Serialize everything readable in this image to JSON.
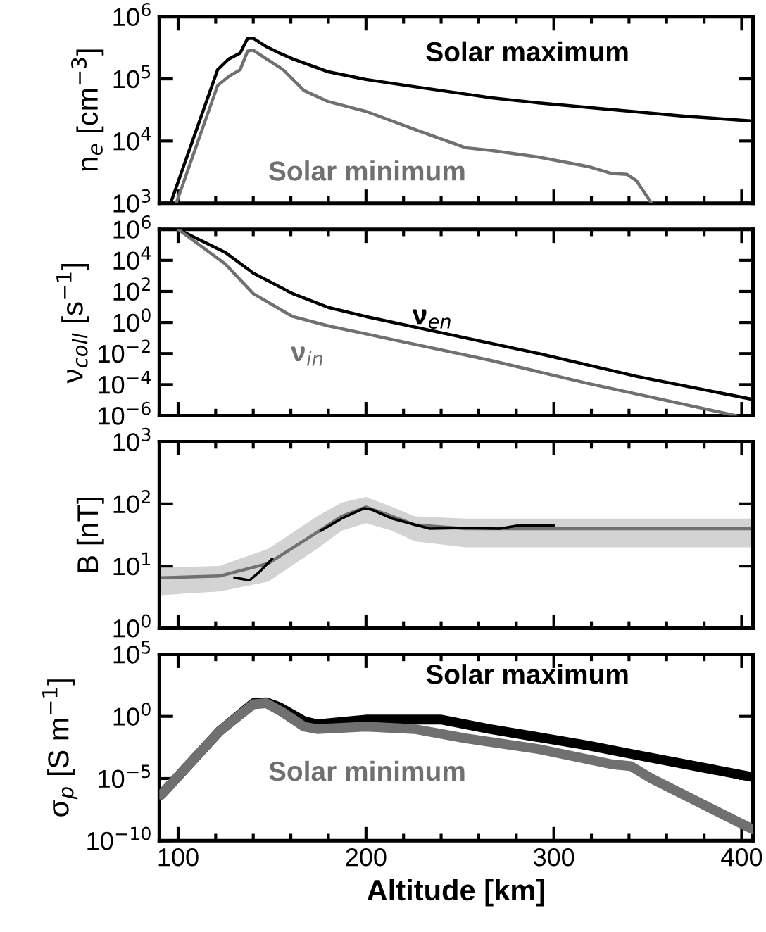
{
  "chart_data": [
    {
      "type": "line",
      "ylabel": "n$_{e}$ [cm$^{−3}$]",
      "log": "y",
      "xlim": [
        90,
        406
      ],
      "ylim": [
        1000,
        1000000
      ],
      "xticks": [
        100,
        {
          "value": 120,
          "label": null
        },
        {
          "value": 140,
          "label": null
        },
        {
          "value": 160,
          "label": null
        },
        {
          "value": 180,
          "label": null
        },
        200,
        {
          "value": 220,
          "label": null
        },
        {
          "value": 240,
          "label": null
        },
        {
          "value": 260,
          "label": null
        },
        {
          "value": 280,
          "label": null
        },
        300,
        {
          "value": 320,
          "label": null
        },
        {
          "value": 340,
          "label": null
        },
        {
          "value": 360,
          "label": null
        },
        {
          "value": 380,
          "label": null
        },
        400
      ],
      "yticks": [
        {
          "value": 1000,
          "label": "10$^{3}$"
        },
        {
          "value": 10000,
          "label": "10$^{4}$"
        },
        {
          "value": 100000,
          "label": "10$^{5}$"
        },
        {
          "value": 1000000,
          "label": "10$^{6}$"
        }
      ],
      "tick_labels": "y",
      "grid": false,
      "series": [
        {
          "name": "Solar maximum",
          "color": "#000000",
          "x": [
            96,
            121,
            127,
            133,
            137,
            140,
            147,
            154,
            161,
            180,
            200,
            227,
            266,
            292,
            331,
            370,
            406
          ],
          "values": [
            1000,
            140000,
            210000,
            260000,
            450000,
            450000,
            330000,
            260000,
            210000,
            130000,
            98000,
            74000,
            50000,
            41000,
            32000,
            25000,
            21000
          ]
        },
        {
          "name": "Solar minimum",
          "color": "#707070",
          "x": [
            99,
            121,
            127,
            133,
            137,
            140,
            147,
            156,
            167,
            180,
            200,
            227,
            253,
            266,
            292,
            318,
            331,
            339,
            344,
            352
          ],
          "values": [
            1000,
            78000,
            110000,
            140000,
            280000,
            290000,
            210000,
            140000,
            65000,
            43000,
            30000,
            15000,
            7800,
            7100,
            5500,
            3900,
            3000,
            2900,
            2300,
            1000
          ]
        }
      ]
    },
    {
      "type": "line",
      "ylabel": "ν$_{coll}$ [s$^{−1}$]",
      "log": "y",
      "xlim": [
        90,
        406
      ],
      "ylim": [
        1e-06,
        1000000
      ],
      "xticks": [
        100,
        {
          "value": 120,
          "label": null
        },
        {
          "value": 140,
          "label": null
        },
        {
          "value": 160,
          "label": null
        },
        {
          "value": 180,
          "label": null
        },
        200,
        {
          "value": 220,
          "label": null
        },
        {
          "value": 240,
          "label": null
        },
        {
          "value": 260,
          "label": null
        },
        {
          "value": 280,
          "label": null
        },
        300,
        {
          "value": 320,
          "label": null
        },
        {
          "value": 340,
          "label": null
        },
        {
          "value": 360,
          "label": null
        },
        {
          "value": 380,
          "label": null
        },
        400
      ],
      "yticks": [
        {
          "value": 1e-06,
          "label": "10$^{−6}$"
        },
        {
          "value": 0.0001,
          "label": "10$^{−4}$"
        },
        {
          "value": 0.01,
          "label": "10$^{−2}$"
        },
        {
          "value": 1,
          "label": "10$^{0}$"
        },
        {
          "value": 100,
          "label": "10$^{2}$"
        },
        {
          "value": 10000,
          "label": "10$^{4}$"
        },
        {
          "value": 1000000,
          "label": "10$^{6}$"
        }
      ],
      "tick_labels": "y",
      "grid": false,
      "series": [
        {
          "name": "ν$_{en}$",
          "color": "#000000",
          "x": [
            100,
            125,
            140,
            161,
            180,
            200,
            240,
            292,
            344,
            406
          ],
          "values": [
            1000000,
            33000,
            1500,
            72,
            9.3,
            2.4,
            0.22,
            0.01,
            0.00034,
            1.1e-05
          ]
        },
        {
          "name": "ν$_{in}$",
          "color": "#707070",
          "x": [
            100,
            125,
            140,
            161,
            180,
            214,
            266,
            318,
            397
          ],
          "values": [
            1000000,
            6000,
            72,
            2.4,
            0.6,
            0.08,
            0.0037,
            0.00012,
            1e-06
          ]
        }
      ]
    },
    {
      "type": "line",
      "ylabel": "B [nT]",
      "log": "y",
      "xlim": [
        90,
        406
      ],
      "ylim": [
        1,
        1000
      ],
      "xticks": [
        100,
        {
          "value": 120,
          "label": null
        },
        {
          "value": 140,
          "label": null
        },
        {
          "value": 160,
          "label": null
        },
        {
          "value": 180,
          "label": null
        },
        200,
        {
          "value": 220,
          "label": null
        },
        {
          "value": 240,
          "label": null
        },
        {
          "value": 260,
          "label": null
        },
        {
          "value": 280,
          "label": null
        },
        300,
        {
          "value": 320,
          "label": null
        },
        {
          "value": 340,
          "label": null
        },
        {
          "value": 360,
          "label": null
        },
        {
          "value": 380,
          "label": null
        },
        400
      ],
      "yticks": [
        {
          "value": 1,
          "label": "10$^{0}$"
        },
        {
          "value": 10,
          "label": "10$^{1}$"
        },
        {
          "value": 100,
          "label": "10$^{2}$"
        },
        {
          "value": 1000,
          "label": "10$^{3}$"
        }
      ],
      "tick_labels": "y",
      "grid": false,
      "series": [
        {
          "color": "#707070",
          "x": [
            91,
            122,
            148,
            174,
            187,
            200,
            214,
            226,
            253,
            406
          ],
          "values": [
            6.5,
            6.9,
            11,
            35,
            63,
            89,
            63,
            46,
            40,
            40
          ],
          "lower": [
            3.4,
            3.9,
            5.6,
            19,
            37,
            49,
            37,
            25,
            20,
            20
          ],
          "upper": [
            9.5,
            10,
            19,
            63,
            105,
            129,
            89,
            63,
            58,
            58
          ]
        },
        {
          "color": "#000000",
          "x": [
            130,
            138,
            143,
            150,
            160,
            176,
            187,
            199,
            203,
            214,
            234,
            253,
            271,
            281,
            300
          ],
          "values": [
            6.5,
            5.9,
            7.9,
            13,
            null,
            37,
            58,
            85,
            81,
            58,
            40,
            41,
            40,
            45,
            45
          ]
        }
      ]
    },
    {
      "type": "line",
      "xlabel": "Altitude [km]",
      "ylabel": "σ$_{p}$ [S m$^{−1}$]",
      "log": "y",
      "xlim": [
        90,
        406
      ],
      "ylim": [
        1e-10,
        100000
      ],
      "xticks": [
        100,
        {
          "value": 120,
          "label": null
        },
        {
          "value": 140,
          "label": null
        },
        {
          "value": 160,
          "label": null
        },
        {
          "value": 180,
          "label": null
        },
        200,
        {
          "value": 220,
          "label": null
        },
        {
          "value": 240,
          "label": null
        },
        {
          "value": 260,
          "label": null
        },
        {
          "value": 280,
          "label": null
        },
        300,
        {
          "value": 320,
          "label": null
        },
        {
          "value": 340,
          "label": null
        },
        {
          "value": 360,
          "label": null
        },
        {
          "value": 380,
          "label": null
        },
        400
      ],
      "yticks": [
        {
          "value": 1e-10,
          "label": "10$^{−10}$"
        },
        {
          "value": 1e-05,
          "label": "10$^{−5}$"
        },
        {
          "value": 1,
          "label": "10$^{0}$"
        },
        {
          "value": 100000,
          "label": "10$^{5}$"
        }
      ],
      "grid": false,
      "series": [
        {
          "name": "Solar maximum",
          "color": "#000000",
          "x": [
            91,
            122,
            140,
            147,
            154,
            167,
            174,
            200,
            240,
            266,
            318,
            344,
            406
          ],
          "values": [
            5e-07,
            0.063,
            11.5,
            13.5,
            5.6,
            0.42,
            0.23,
            0.55,
            0.55,
            0.095,
            0.0046,
            0.00079,
            1.3e-05
          ]
        },
        {
          "name": "Solar minimum",
          "color": "#707070",
          "x": [
            91,
            122,
            140,
            147,
            156,
            167,
            174,
            200,
            226,
            253,
            292,
            331,
            341,
            352,
            406
          ],
          "values": [
            5e-07,
            0.063,
            9.5,
            11.5,
            2,
            0.15,
            0.095,
            0.15,
            0.095,
            0.017,
            0.0023,
            0.00014,
            0.0001,
            1e-05,
            8e-10
          ]
        }
      ]
    }
  ]
}
